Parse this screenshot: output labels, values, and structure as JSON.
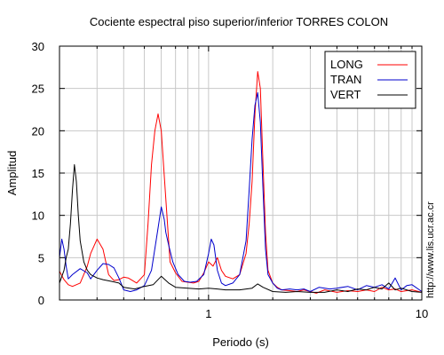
{
  "chart_data": {
    "type": "line",
    "title": "Cociente espectral piso superior/inferior  TORRES COLON",
    "xlabel": "Periodo (s)",
    "ylabel": "Amplitud",
    "x_scale": "log",
    "xlim": [
      0.2,
      10
    ],
    "ylim": [
      0,
      30
    ],
    "x_tick_labels": [
      {
        "value": 1,
        "label": "1"
      },
      {
        "value": 10,
        "label": "10"
      }
    ],
    "y_ticks": [
      0,
      5,
      10,
      15,
      20,
      25,
      30
    ],
    "grid": true,
    "legend_position": "top-right",
    "side_text": "http://www.lis.ucr.ac.cr",
    "series": [
      {
        "name": "LONG",
        "color": "#ff0000",
        "x": [
          0.2,
          0.21,
          0.22,
          0.23,
          0.25,
          0.27,
          0.28,
          0.3,
          0.32,
          0.34,
          0.36,
          0.38,
          0.4,
          0.42,
          0.44,
          0.46,
          0.48,
          0.5,
          0.52,
          0.54,
          0.56,
          0.58,
          0.6,
          0.63,
          0.66,
          0.7,
          0.75,
          0.8,
          0.85,
          0.9,
          0.95,
          1.0,
          1.05,
          1.1,
          1.15,
          1.2,
          1.3,
          1.4,
          1.5,
          1.55,
          1.6,
          1.65,
          1.7,
          1.75,
          1.8,
          1.85,
          1.9,
          2.0,
          2.1,
          2.2,
          2.4,
          2.6,
          2.8,
          3.0,
          3.2,
          3.5,
          4.0,
          4.5,
          5.0,
          5.5,
          6.0,
          6.5,
          7.0,
          7.5,
          8.0,
          9.0,
          10.0
        ],
        "y": [
          3.4,
          2.4,
          1.8,
          1.6,
          2.0,
          4.0,
          5.5,
          7.2,
          6.0,
          3.0,
          2.3,
          2.4,
          2.7,
          2.6,
          2.3,
          2.0,
          2.5,
          3.0,
          9.0,
          16.0,
          20.0,
          22.0,
          20.0,
          12.0,
          4.5,
          3.2,
          2.2,
          2.1,
          2.0,
          2.2,
          3.2,
          4.5,
          4.0,
          5.0,
          3.5,
          2.8,
          2.5,
          3.0,
          5.5,
          9.0,
          14.0,
          22.0,
          27.0,
          25.0,
          16.0,
          8.0,
          3.5,
          2.0,
          1.5,
          1.2,
          1.1,
          1.0,
          1.2,
          1.0,
          0.8,
          1.2,
          0.9,
          1.1,
          1.0,
          1.2,
          1.0,
          1.5,
          1.2,
          1.3,
          1.0,
          1.2,
          0.9
        ]
      },
      {
        "name": "TRAN",
        "color": "#0000cc",
        "x": [
          0.2,
          0.205,
          0.21,
          0.215,
          0.22,
          0.23,
          0.25,
          0.27,
          0.28,
          0.3,
          0.32,
          0.34,
          0.36,
          0.38,
          0.4,
          0.43,
          0.46,
          0.5,
          0.54,
          0.58,
          0.6,
          0.62,
          0.63,
          0.65,
          0.68,
          0.72,
          0.77,
          0.82,
          0.88,
          0.95,
          1.0,
          1.03,
          1.06,
          1.1,
          1.15,
          1.2,
          1.3,
          1.4,
          1.5,
          1.55,
          1.6,
          1.65,
          1.7,
          1.75,
          1.8,
          1.85,
          1.9,
          2.0,
          2.1,
          2.2,
          2.4,
          2.6,
          2.8,
          3.0,
          3.3,
          3.7,
          4.0,
          4.5,
          5.0,
          5.5,
          6.0,
          6.5,
          7.0,
          7.5,
          8.0,
          8.5,
          9.0,
          10.0
        ],
        "y": [
          5.0,
          7.2,
          6.0,
          4.0,
          2.5,
          3.0,
          3.7,
          3.2,
          2.5,
          3.5,
          4.3,
          4.2,
          3.8,
          2.6,
          1.2,
          1.0,
          1.2,
          1.7,
          3.5,
          8.5,
          11.0,
          9.5,
          8.0,
          6.5,
          4.5,
          3.0,
          2.2,
          2.1,
          2.2,
          3.0,
          5.5,
          7.2,
          6.5,
          3.5,
          2.0,
          1.7,
          2.0,
          3.0,
          7.0,
          13.0,
          19.0,
          23.0,
          24.5,
          21.0,
          13.0,
          6.0,
          3.0,
          2.0,
          1.4,
          1.2,
          1.3,
          1.2,
          1.3,
          1.0,
          1.5,
          1.3,
          1.4,
          1.6,
          1.2,
          1.7,
          1.5,
          1.8,
          1.3,
          2.6,
          1.2,
          1.7,
          1.8,
          1.0
        ]
      },
      {
        "name": "VERT",
        "color": "#000000",
        "x": [
          0.2,
          0.21,
          0.215,
          0.22,
          0.225,
          0.23,
          0.235,
          0.24,
          0.245,
          0.25,
          0.26,
          0.27,
          0.28,
          0.3,
          0.32,
          0.35,
          0.38,
          0.4,
          0.45,
          0.5,
          0.55,
          0.6,
          0.65,
          0.7,
          0.8,
          0.9,
          1.0,
          1.1,
          1.2,
          1.4,
          1.6,
          1.7,
          1.8,
          2.0,
          2.3,
          2.6,
          3.0,
          3.5,
          4.0,
          4.5,
          5.0,
          5.5,
          6.0,
          6.5,
          7.0,
          7.5,
          8.0,
          9.0,
          10.0
        ],
        "y": [
          2.0,
          3.5,
          5.0,
          6.0,
          9.0,
          13.0,
          16.0,
          14.0,
          10.0,
          7.0,
          4.5,
          3.5,
          3.0,
          2.6,
          2.4,
          2.2,
          2.0,
          1.5,
          1.3,
          1.6,
          1.8,
          2.8,
          2.0,
          1.5,
          1.4,
          1.3,
          1.4,
          1.3,
          1.2,
          1.2,
          1.4,
          1.9,
          1.5,
          1.0,
          0.9,
          1.0,
          0.9,
          0.9,
          1.2,
          1.0,
          1.3,
          1.2,
          1.5,
          1.3,
          2.0,
          1.2,
          1.4,
          1.0,
          0.9
        ]
      }
    ]
  }
}
